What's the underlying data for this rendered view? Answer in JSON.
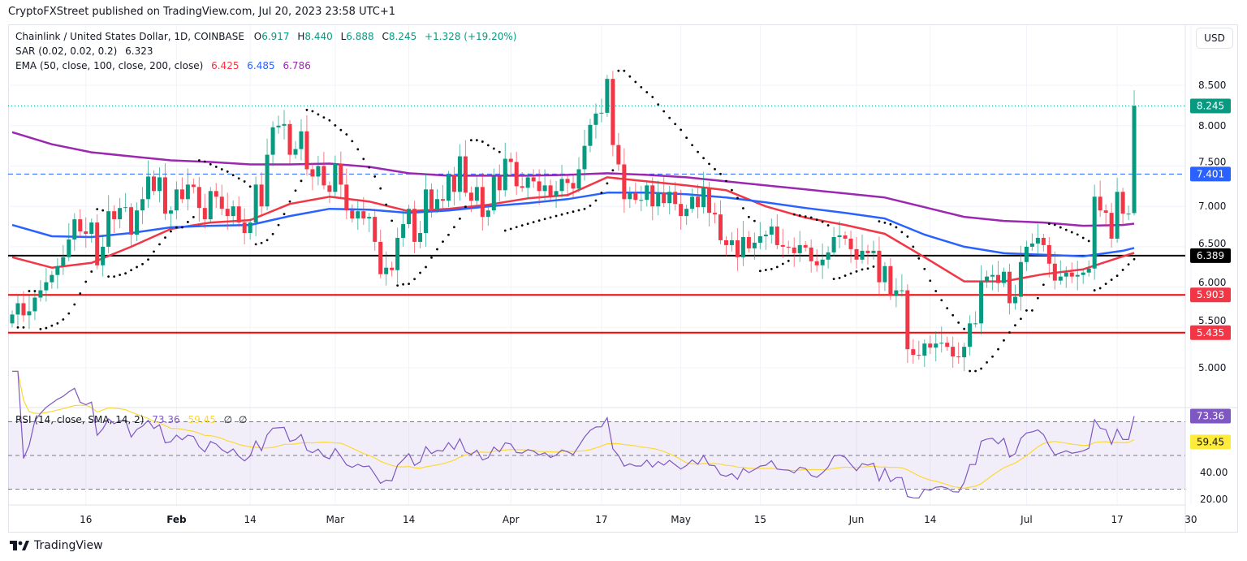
{
  "header": {
    "publisher": "CryptoFXStreet published on TradingView.com, Jul 20, 2023 23:58 UTC+1"
  },
  "legend": {
    "symbol": "Chainlink / United States Dollar, 1D, COINBASE",
    "o_label": "O",
    "open": "6.917",
    "h_label": "H",
    "high": "8.440",
    "l_label": "L",
    "low": "6.888",
    "c_label": "C",
    "close": "8.245",
    "change": "+1.328 (+19.20%)",
    "sar_label": "SAR (0.02, 0.02, 0.2)",
    "sar_value": "6.323",
    "ema_label": "EMA (50, close, 100, close, 200, close)",
    "ema50": "6.425",
    "ema100": "6.485",
    "ema200": "6.786"
  },
  "rsi_legend": {
    "label": "RSI (14, close, SMA, 14, 2)",
    "rsi": "73.36",
    "sma": "59.45",
    "extra1": "∅",
    "extra2": "∅"
  },
  "currency_button": "USD",
  "footer": {
    "brand": "TradingView"
  },
  "colors": {
    "up": "#089981",
    "down": "#f23645",
    "ema50": "#f23645",
    "ema100": "#2962ff",
    "ema200": "#9c27b0",
    "sar": "#000000",
    "rsi": "#7e57c2",
    "rsi_sma": "#fdd835",
    "level_black": "#000000",
    "level_red": "#ff0000",
    "level_blue": "#2962ff"
  },
  "chart_data": {
    "type": "candlestick",
    "start_date": "2023-01-03",
    "end_date": "2023-07-20",
    "interval": "1D",
    "first_open": 5.55,
    "closes": [
      5.66,
      5.8,
      5.65,
      5.7,
      5.87,
      5.96,
      6.06,
      6.15,
      6.26,
      6.37,
      6.59,
      6.84,
      6.69,
      6.66,
      6.8,
      6.27,
      6.5,
      6.94,
      6.84,
      6.98,
      6.99,
      6.65,
      6.95,
      7.09,
      7.37,
      7.19,
      7.36,
      6.91,
      6.95,
      7.21,
      7.09,
      7.27,
      7.24,
      6.98,
      6.84,
      7.19,
      7.12,
      6.97,
      6.88,
      7.0,
      6.8,
      6.67,
      6.8,
      7.27,
      7.0,
      7.64,
      7.98,
      8.0,
      8.02,
      7.64,
      7.71,
      7.93,
      7.46,
      7.37,
      7.5,
      7.26,
      7.18,
      7.53,
      7.27,
      6.95,
      6.85,
      6.94,
      6.85,
      6.87,
      6.56,
      6.16,
      6.24,
      6.21,
      6.61,
      6.78,
      6.97,
      6.56,
      6.67,
      7.21,
      6.97,
      7.09,
      7.07,
      7.39,
      7.18,
      7.62,
      7.17,
      7.07,
      7.24,
      6.87,
      6.95,
      7.37,
      7.2,
      7.59,
      7.55,
      7.25,
      7.23,
      7.36,
      7.31,
      7.19,
      7.26,
      7.12,
      7.19,
      7.34,
      7.29,
      7.22,
      7.46,
      7.75,
      8.01,
      8.15,
      8.16,
      8.58,
      7.76,
      7.52,
      7.09,
      7.17,
      7.08,
      7.08,
      7.26,
      7.0,
      7.17,
      7.04,
      7.18,
      7.03,
      6.88,
      6.97,
      7.12,
      6.99,
      7.23,
      6.92,
      6.9,
      6.58,
      6.52,
      6.58,
      6.37,
      6.62,
      6.48,
      6.55,
      6.63,
      6.65,
      6.75,
      6.52,
      6.5,
      6.49,
      6.42,
      6.52,
      6.49,
      6.32,
      6.27,
      6.34,
      6.43,
      6.62,
      6.64,
      6.6,
      6.47,
      6.34,
      6.45,
      6.42,
      6.45,
      6.06,
      6.26,
      5.89,
      5.96,
      5.96,
      5.23,
      5.16,
      5.15,
      5.3,
      5.25,
      5.3,
      5.31,
      5.26,
      5.14,
      5.13,
      5.26,
      5.55,
      5.55,
      6.07,
      6.13,
      6.15,
      6.05,
      6.19,
      5.8,
      5.88,
      6.31,
      6.5,
      6.54,
      6.61,
      6.52,
      6.29,
      6.08,
      6.13,
      6.18,
      6.13,
      6.15,
      6.18,
      6.23,
      7.12,
      6.95,
      6.92,
      6.6,
      7.18,
      6.91,
      6.91,
      8.245
    ],
    "last_bar": {
      "open": 6.917,
      "high": 8.44,
      "low": 6.888,
      "close": 8.245,
      "change": 1.328,
      "change_pct": 19.2
    },
    "ema": [
      {
        "period": 50,
        "value": 6.425,
        "points": [
          [
            "2023-01-03",
            6.37
          ],
          [
            "2023-01-10",
            6.24
          ],
          [
            "2023-01-17",
            6.3
          ],
          [
            "2023-01-24",
            6.5
          ],
          [
            "2023-01-31",
            6.72
          ],
          [
            "2023-02-07",
            6.8
          ],
          [
            "2023-02-14",
            6.83
          ],
          [
            "2023-02-21",
            7.03
          ],
          [
            "2023-02-28",
            7.12
          ],
          [
            "2023-03-07",
            7.06
          ],
          [
            "2023-03-14",
            6.94
          ],
          [
            "2023-03-21",
            6.97
          ],
          [
            "2023-03-28",
            7.02
          ],
          [
            "2023-04-04",
            7.1
          ],
          [
            "2023-04-11",
            7.14
          ],
          [
            "2023-04-18",
            7.36
          ],
          [
            "2023-04-25",
            7.31
          ],
          [
            "2023-05-02",
            7.26
          ],
          [
            "2023-05-09",
            7.2
          ],
          [
            "2023-05-16",
            7.0
          ],
          [
            "2023-05-23",
            6.86
          ],
          [
            "2023-05-30",
            6.77
          ],
          [
            "2023-06-06",
            6.66
          ],
          [
            "2023-06-13",
            6.37
          ],
          [
            "2023-06-20",
            6.07
          ],
          [
            "2023-06-27",
            6.07
          ],
          [
            "2023-07-04",
            6.16
          ],
          [
            "2023-07-11",
            6.22
          ],
          [
            "2023-07-18",
            6.38
          ],
          [
            "2023-07-20",
            6.425
          ]
        ]
      },
      {
        "period": 100,
        "value": 6.485,
        "points": [
          [
            "2023-01-03",
            6.77
          ],
          [
            "2023-01-10",
            6.63
          ],
          [
            "2023-01-17",
            6.62
          ],
          [
            "2023-01-24",
            6.67
          ],
          [
            "2023-01-31",
            6.74
          ],
          [
            "2023-02-07",
            6.76
          ],
          [
            "2023-02-14",
            6.77
          ],
          [
            "2023-02-21",
            6.88
          ],
          [
            "2023-02-28",
            6.97
          ],
          [
            "2023-03-07",
            6.96
          ],
          [
            "2023-03-14",
            6.92
          ],
          [
            "2023-03-21",
            6.95
          ],
          [
            "2023-03-28",
            7.0
          ],
          [
            "2023-04-04",
            7.04
          ],
          [
            "2023-04-11",
            7.09
          ],
          [
            "2023-04-18",
            7.17
          ],
          [
            "2023-04-25",
            7.17
          ],
          [
            "2023-05-02",
            7.15
          ],
          [
            "2023-05-09",
            7.11
          ],
          [
            "2023-05-16",
            7.05
          ],
          [
            "2023-05-23",
            6.98
          ],
          [
            "2023-05-30",
            6.92
          ],
          [
            "2023-06-06",
            6.85
          ],
          [
            "2023-06-13",
            6.65
          ],
          [
            "2023-06-20",
            6.5
          ],
          [
            "2023-06-27",
            6.42
          ],
          [
            "2023-07-04",
            6.4
          ],
          [
            "2023-07-11",
            6.38
          ],
          [
            "2023-07-18",
            6.45
          ],
          [
            "2023-07-20",
            6.485
          ]
        ]
      },
      {
        "period": 200,
        "value": 6.786,
        "points": [
          [
            "2023-01-03",
            7.92
          ],
          [
            "2023-01-10",
            7.77
          ],
          [
            "2023-01-17",
            7.67
          ],
          [
            "2023-01-24",
            7.62
          ],
          [
            "2023-01-31",
            7.57
          ],
          [
            "2023-02-07",
            7.55
          ],
          [
            "2023-02-14",
            7.52
          ],
          [
            "2023-02-21",
            7.52
          ],
          [
            "2023-02-28",
            7.53
          ],
          [
            "2023-03-07",
            7.49
          ],
          [
            "2023-03-14",
            7.41
          ],
          [
            "2023-03-21",
            7.38
          ],
          [
            "2023-03-28",
            7.38
          ],
          [
            "2023-04-04",
            7.38
          ],
          [
            "2023-04-11",
            7.39
          ],
          [
            "2023-04-18",
            7.41
          ],
          [
            "2023-04-25",
            7.39
          ],
          [
            "2023-05-02",
            7.36
          ],
          [
            "2023-05-09",
            7.31
          ],
          [
            "2023-05-16",
            7.26
          ],
          [
            "2023-05-23",
            7.21
          ],
          [
            "2023-05-30",
            7.16
          ],
          [
            "2023-06-06",
            7.11
          ],
          [
            "2023-06-13",
            6.99
          ],
          [
            "2023-06-20",
            6.87
          ],
          [
            "2023-06-27",
            6.82
          ],
          [
            "2023-07-04",
            6.8
          ],
          [
            "2023-07-11",
            6.76
          ],
          [
            "2023-07-18",
            6.77
          ],
          [
            "2023-07-20",
            6.786
          ]
        ]
      }
    ],
    "sar": {
      "params": [
        0.02,
        0.02,
        0.2
      ],
      "value": 6.323
    },
    "horizontal_levels": [
      {
        "value": 8.245,
        "label": "8.245",
        "style": "dotted",
        "color": "#089981"
      },
      {
        "value": 7.401,
        "label": "7.401",
        "style": "dashed",
        "color": "#2962ff"
      },
      {
        "value": 6.389,
        "label": "6.389",
        "style": "solid",
        "color": "#000000"
      },
      {
        "value": 5.903,
        "label": "5.903",
        "style": "solid",
        "color": "#ff0000"
      },
      {
        "value": 5.435,
        "label": "5.435",
        "style": "solid",
        "color": "#ff0000"
      }
    ],
    "y_ticks": [
      "8.500",
      "8.000",
      "7.500",
      "7.000",
      "6.500",
      "6.000",
      "5.500",
      "5.000"
    ],
    "ylim": [
      4.85,
      8.95
    ],
    "x_ticks": [
      {
        "date": "2023-01-16",
        "label": "16",
        "month": false
      },
      {
        "date": "2023-02-01",
        "label": "Feb",
        "month": true
      },
      {
        "date": "2023-02-14",
        "label": "14",
        "month": false
      },
      {
        "date": "2023-03-01",
        "label": "Mar",
        "month": false
      },
      {
        "date": "2023-03-14",
        "label": "14",
        "month": false
      },
      {
        "date": "2023-04-01",
        "label": "Apr",
        "month": false
      },
      {
        "date": "2023-04-17",
        "label": "17",
        "month": false
      },
      {
        "date": "2023-05-01",
        "label": "May",
        "month": false
      },
      {
        "date": "2023-05-15",
        "label": "15",
        "month": false
      },
      {
        "date": "2023-06-01",
        "label": "Jun",
        "month": false
      },
      {
        "date": "2023-06-14",
        "label": "14",
        "month": false
      },
      {
        "date": "2023-07-01",
        "label": "Jul",
        "month": false
      },
      {
        "date": "2023-07-17",
        "label": "17",
        "month": false
      },
      {
        "date": "2023-07-30",
        "label": "30",
        "month": false
      }
    ],
    "rsi": {
      "period": 14,
      "sma_period": 14,
      "value": 73.36,
      "sma_value": 59.45,
      "levels": [
        70,
        50,
        30
      ],
      "y_ticks": [
        "40.00",
        "20.00"
      ],
      "ylim": [
        18,
        78
      ],
      "value_label": "73.36",
      "sma_label": "59.45"
    }
  }
}
